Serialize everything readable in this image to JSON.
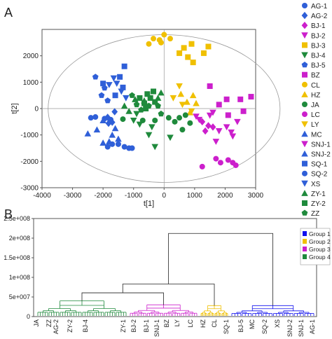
{
  "chart_data": [
    {
      "panel": "A",
      "type": "scatter",
      "xlabel": "t[1]",
      "ylabel": "t[2]",
      "xlim": [
        -4000,
        3000
      ],
      "ylim": [
        -3000,
        3000
      ],
      "xticks": [
        "-4000",
        "-3000",
        "-2000",
        "-1000",
        "0",
        "1000",
        "2000",
        "3000"
      ],
      "yticks": [
        "2000",
        "1000",
        "0",
        "-1000",
        "-2000",
        "-3000"
      ],
      "ellipse": {
        "cx": 0,
        "cy": 0,
        "rx": 3800,
        "ry": 2800
      },
      "legend_position": "right",
      "colors": {
        "blue": "#2f5fd8",
        "green": "#1f8a3c",
        "magenta": "#cc1fcc",
        "yellow": "#f0c000"
      },
      "series": [
        {
          "name": "AG-1",
          "marker": "circle",
          "color": "#2f5fd8",
          "points": [
            [
              -2400,
              -350
            ],
            [
              -2250,
              -320
            ],
            [
              -1950,
              -380
            ],
            [
              -1750,
              -420
            ]
          ]
        },
        {
          "name": "AG-2",
          "marker": "diamond",
          "color": "#2f5fd8",
          "points": [
            [
              -1850,
              -330
            ],
            [
              -1700,
              -520
            ],
            [
              -1620,
              -120
            ],
            [
              -1820,
              -560
            ]
          ]
        },
        {
          "name": "BJ-1",
          "marker": "diamond",
          "color": "#cc1fcc",
          "points": [
            [
              1250,
              -500
            ],
            [
              1450,
              -650
            ],
            [
              1350,
              -850
            ],
            [
              1600,
              -700
            ]
          ]
        },
        {
          "name": "BJ-2",
          "marker": "triangle-down",
          "color": "#cc1fcc",
          "points": [
            [
              1050,
              -300
            ],
            [
              1150,
              -420
            ],
            [
              1500,
              -260
            ]
          ]
        },
        {
          "name": "BJ-3",
          "marker": "square",
          "color": "#f0c000",
          "points": [
            [
              500,
              2100
            ],
            [
              650,
              2300
            ],
            [
              780,
              1950
            ],
            [
              900,
              2450
            ],
            [
              950,
              1750
            ],
            [
              1300,
              2100
            ],
            [
              1450,
              2350
            ]
          ]
        },
        {
          "name": "BJ-4",
          "marker": "triangle-down",
          "color": "#1f8a3c",
          "points": [
            [
              -1000,
              -450
            ],
            [
              -900,
              -200
            ],
            [
              -800,
              -600
            ],
            [
              -400,
              -700
            ],
            [
              -500,
              -1000
            ],
            [
              -300,
              -1450
            ],
            [
              200,
              -1100
            ]
          ]
        },
        {
          "name": "BJ-5",
          "marker": "pentagon",
          "color": "#2f5fd8",
          "points": [
            [
              -2250,
              1200
            ],
            [
              -2050,
              500
            ],
            [
              -1950,
              780
            ],
            [
              -1850,
              300
            ]
          ]
        },
        {
          "name": "BZ",
          "marker": "square",
          "color": "#cc1fcc",
          "points": [
            [
              1500,
              850
            ],
            [
              1800,
              150
            ],
            [
              2050,
              350
            ],
            [
              2100,
              -250
            ],
            [
              2500,
              350
            ],
            [
              2600,
              -100
            ],
            [
              2850,
              450
            ]
          ]
        },
        {
          "name": "CL",
          "marker": "circle",
          "color": "#f0c000",
          "points": [
            [
              -500,
              2450
            ],
            [
              -350,
              2650
            ],
            [
              -150,
              2600
            ],
            [
              0,
              2800
            ],
            [
              -100,
              2500
            ],
            [
              200,
              2650
            ]
          ]
        },
        {
          "name": "HZ",
          "marker": "triangle-up",
          "color": "#f0c000",
          "points": [
            [
              550,
              550
            ],
            [
              750,
              250
            ],
            [
              850,
              -150
            ],
            [
              950,
              500
            ],
            [
              1050,
              200
            ]
          ]
        },
        {
          "name": "JA",
          "marker": "circle",
          "color": "#1f8a3c",
          "points": [
            [
              -1350,
              -400
            ],
            [
              -700,
              -450
            ],
            [
              -300,
              -450
            ],
            [
              150,
              -350
            ],
            [
              350,
              -500
            ],
            [
              500,
              -350
            ],
            [
              600,
              -800
            ],
            [
              700,
              -250
            ],
            [
              850,
              -550
            ]
          ]
        },
        {
          "name": "LC",
          "marker": "circle",
          "color": "#cc1fcc",
          "points": [
            [
              1700,
              -1900
            ],
            [
              1850,
              -2050
            ],
            [
              2100,
              -1950
            ],
            [
              2250,
              -2050
            ],
            [
              2350,
              -2150
            ],
            [
              1250,
              -2200
            ]
          ]
        },
        {
          "name": "LY",
          "marker": "triangle-down",
          "color": "#f0c000",
          "points": [
            [
              300,
              400
            ],
            [
              500,
              850
            ],
            [
              600,
              150
            ],
            [
              900,
              -100
            ]
          ]
        },
        {
          "name": "MC",
          "marker": "triangle-up",
          "color": "#2f5fd8",
          "points": [
            [
              -2500,
              -950
            ],
            [
              -2200,
              -800
            ],
            [
              -2000,
              -450
            ],
            [
              -1700,
              -1000
            ]
          ]
        },
        {
          "name": "SNJ-1",
          "marker": "triangle-down",
          "color": "#cc1fcc",
          "points": [
            [
              1600,
              -150
            ],
            [
              1700,
              -1250
            ],
            [
              1800,
              -850
            ],
            [
              2050,
              -700
            ],
            [
              2200,
              -900
            ],
            [
              2250,
              -1050
            ],
            [
              2400,
              -500
            ]
          ]
        },
        {
          "name": "SNJ-2",
          "marker": "triangle-up",
          "color": "#2f5fd8",
          "points": [
            [
              -2000,
              -1300
            ],
            [
              -1800,
              -1250
            ],
            [
              -1600,
              -750
            ],
            [
              -1500,
              -1150
            ]
          ]
        },
        {
          "name": "SQ-1",
          "marker": "square",
          "color": "#2f5fd8",
          "points": [
            [
              -1300,
              1600
            ],
            [
              -1450,
              1200
            ],
            [
              -1350,
              800
            ],
            [
              -1600,
              500
            ],
            [
              -2000,
              950
            ]
          ]
        },
        {
          "name": "SQ-2",
          "marker": "circle",
          "color": "#2f5fd8",
          "points": [
            [
              -1500,
              -1350
            ],
            [
              -1300,
              -1450
            ],
            [
              -1150,
              -1500
            ],
            [
              -1050,
              -1500
            ],
            [
              -1850,
              -1450
            ],
            [
              -1700,
              -1350
            ]
          ]
        },
        {
          "name": "XS",
          "marker": "triangle-down",
          "color": "#2f5fd8",
          "points": [
            [
              -1650,
              1150
            ],
            [
              -1800,
              900
            ],
            [
              -1550,
              950
            ],
            [
              -1400,
              650
            ],
            [
              -1250,
              400
            ]
          ]
        },
        {
          "name": "ZY-1",
          "marker": "triangle-up",
          "color": "#1f8a3c",
          "points": [
            [
              -1150,
              -100
            ],
            [
              -1300,
              100
            ],
            [
              -950,
              350
            ],
            [
              -200,
              400
            ],
            [
              -100,
              600
            ],
            [
              -650,
              300
            ]
          ]
        },
        {
          "name": "ZY-2",
          "marker": "square",
          "color": "#1f8a3c",
          "points": [
            [
              -800,
              400
            ],
            [
              -650,
              200
            ],
            [
              -550,
              550
            ],
            [
              -450,
              400
            ],
            [
              -350,
              650
            ],
            [
              -600,
              0
            ],
            [
              -300,
              250
            ]
          ]
        },
        {
          "name": "ZZ",
          "marker": "pentagon",
          "color": "#1f8a3c",
          "points": [
            [
              -1050,
              500
            ],
            [
              -900,
              150
            ],
            [
              -750,
              -50
            ],
            [
              -500,
              100
            ],
            [
              -200,
              100
            ],
            [
              -100,
              -200
            ]
          ]
        }
      ]
    },
    {
      "panel": "B",
      "type": "dendrogram",
      "ylim": [
        0,
        250000000
      ],
      "yticks": [
        "0",
        "5e+007",
        "1e+008",
        "1.5e+008",
        "2e+008",
        "2.5e+008"
      ],
      "leaf_labels": [
        "JA",
        "ZZ",
        "AG-2",
        "ZY-2",
        "BJ-4",
        "ZY-1",
        "BJ-2",
        "BJ-1",
        "SNJ-1",
        "BZ",
        "LY",
        "LC",
        "HZ",
        "CL",
        "SQ-1",
        "BJ-5",
        "MC",
        "SQ-2",
        "XS",
        "SNJ-2",
        "SNJ-1",
        "AG-1"
      ],
      "legend": [
        {
          "name": "Group 1",
          "color": "#1010ee"
        },
        {
          "name": "Group 2",
          "color": "#f0c000"
        },
        {
          "name": "Group 3",
          "color": "#cc1fcc"
        },
        {
          "name": "Group 4",
          "color": "#1f8a3c"
        }
      ],
      "root_height": 212000000,
      "merge_heights": {
        "g4g3": 82000000,
        "g4g3g2": 83000000,
        "g4": 40000000,
        "g3": 30000000,
        "g2": 28000000,
        "g1": 28000000
      }
    }
  ],
  "labels": {
    "panel_a": "A",
    "panel_b": "B"
  }
}
